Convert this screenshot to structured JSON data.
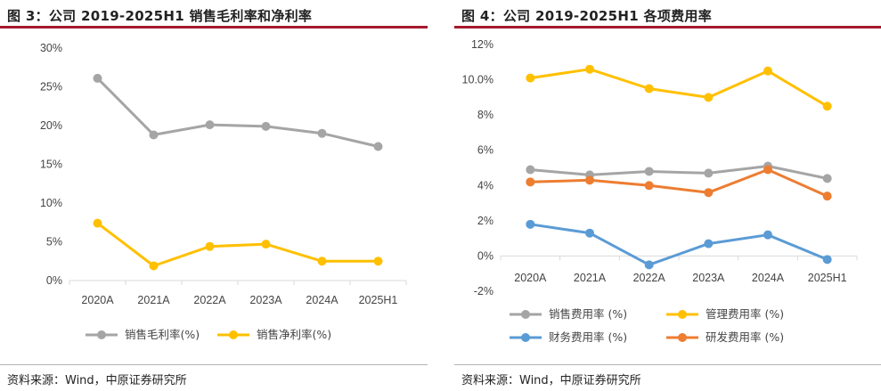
{
  "charts": [
    {
      "title": "图 3：公司 2019-2025H1 销售毛利率和净利率",
      "source": "资料来源：Wind，中原证券研究所",
      "chart_data": {
        "type": "line",
        "categories": [
          "2020A",
          "2021A",
          "2022A",
          "2023A",
          "2024A",
          "2025H1"
        ],
        "y_ticks": [
          "0%",
          "5%",
          "10%",
          "15%",
          "20%",
          "25%",
          "30%"
        ],
        "ylim": [
          0,
          30
        ],
        "series": [
          {
            "name": "销售毛利率(%)",
            "color": "#a5a5a5",
            "values": [
              26.1,
              18.8,
              20.1,
              19.9,
              19.0,
              17.3
            ]
          },
          {
            "name": "销售净利率(%)",
            "color": "#ffc000",
            "values": [
              7.4,
              1.9,
              4.4,
              4.7,
              2.5,
              2.5
            ]
          }
        ]
      }
    },
    {
      "title": "图 4：公司 2019-2025H1 各项费用率",
      "source": "资料来源：Wind，中原证券研究所",
      "chart_data": {
        "type": "line",
        "categories": [
          "2020A",
          "2021A",
          "2022A",
          "2023A",
          "2024A",
          "2025H1"
        ],
        "y_ticks": [
          "-2%",
          "0%",
          "2%",
          "4%",
          "6%",
          "8%",
          "10.0%",
          "12%"
        ],
        "ylim": [
          -2,
          12
        ],
        "series": [
          {
            "name": "销售费用率 (%)",
            "color": "#a5a5a5",
            "values": [
              4.9,
              4.6,
              4.8,
              4.7,
              5.1,
              4.4
            ]
          },
          {
            "name": "管理费用率 (%)",
            "color": "#ffc000",
            "values": [
              10.1,
              10.6,
              9.5,
              9.0,
              10.5,
              8.5
            ]
          },
          {
            "name": "财务费用率 (%)",
            "color": "#5b9bd5",
            "values": [
              1.8,
              1.3,
              -0.5,
              0.7,
              1.2,
              -0.2
            ]
          },
          {
            "name": "研发费用率 (%)",
            "color": "#ed7d31",
            "values": [
              4.2,
              4.3,
              4.0,
              3.6,
              4.9,
              3.4
            ]
          }
        ]
      }
    }
  ]
}
